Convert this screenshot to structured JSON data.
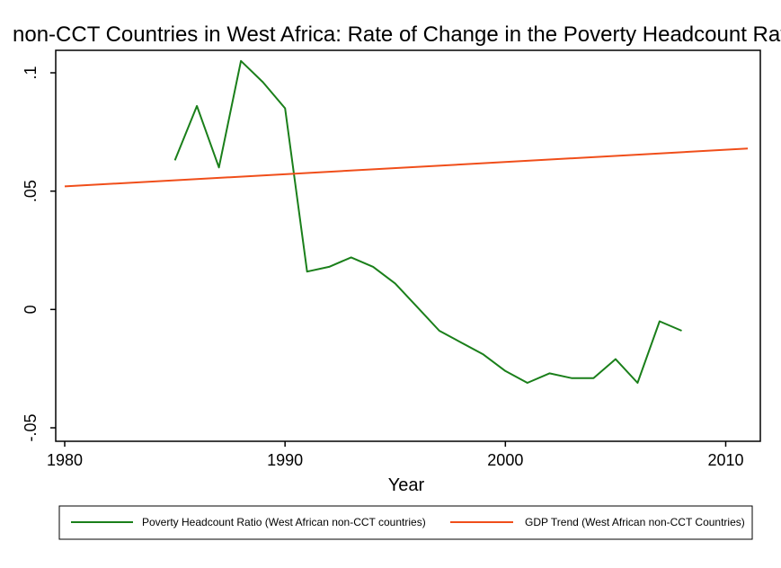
{
  "chart_data": {
    "type": "line",
    "title": "non-CCT Countries in West Africa: Rate of Change in the Poverty Headcount Ratio",
    "xlabel": "Year",
    "ylabel": "",
    "xlim": [
      1980,
      2011
    ],
    "ylim": [
      -0.05,
      0.1
    ],
    "x_ticks": [
      1980,
      1990,
      2000,
      2010
    ],
    "x_tick_labels": [
      "1980",
      "1990",
      "2000",
      "2010"
    ],
    "y_ticks": [
      -0.05,
      0,
      0.05,
      0.1
    ],
    "y_tick_labels": [
      "-.05",
      "0",
      ".05",
      ".1"
    ],
    "grid": false,
    "legend_position": "bottom",
    "series": [
      {
        "name": "Poverty Headcount Ratio (West African non-CCT countries)",
        "color": "#1a7f1a",
        "x": [
          1985,
          1986,
          1987,
          1988,
          1989,
          1990,
          1991,
          1992,
          1993,
          1994,
          1995,
          1996,
          1997,
          1998,
          1999,
          2000,
          2001,
          2002,
          2003,
          2004,
          2005,
          2006,
          2007,
          2008
        ],
        "y": [
          0.063,
          0.086,
          0.06,
          0.105,
          0.096,
          0.085,
          0.016,
          0.018,
          0.022,
          0.018,
          0.011,
          0.001,
          -0.009,
          -0.014,
          -0.019,
          -0.026,
          -0.031,
          -0.027,
          -0.029,
          -0.029,
          -0.021,
          -0.031,
          -0.005,
          -0.009
        ]
      },
      {
        "name": "GDP Trend (West African non-CCT Countries)",
        "color": "#f04e1a",
        "x": [
          1980,
          2011
        ],
        "y": [
          0.052,
          0.068
        ]
      }
    ]
  }
}
